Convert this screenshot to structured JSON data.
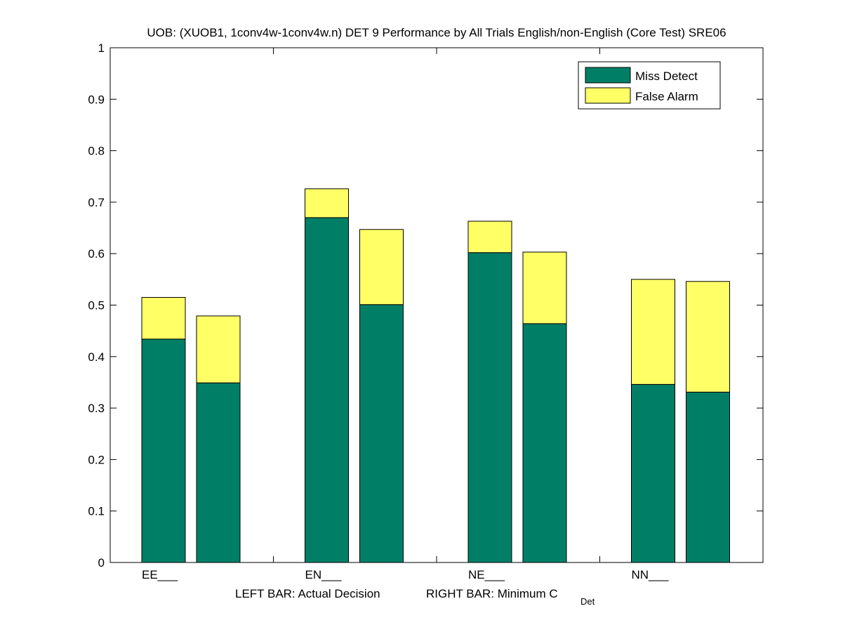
{
  "chart_data": {
    "type": "bar",
    "stacked": true,
    "title": "UOB: (XUOB1, 1conv4w-1conv4w.n) DET 9 Performance by All Trials English/non-English (Core Test) SRE06",
    "categories": [
      "EE___",
      "EN___",
      "NE___",
      "NN___"
    ],
    "bars_per_category": [
      "Actual Decision",
      "Minimum C_Det"
    ],
    "series": [
      {
        "name": "Miss Detect",
        "color": "#007f66",
        "values": [
          [
            0.434,
            0.349
          ],
          [
            0.67,
            0.501
          ],
          [
            0.602,
            0.464
          ],
          [
            0.346,
            0.331
          ]
        ]
      },
      {
        "name": "False Alarm",
        "color": "#ffff66",
        "values": [
          [
            0.081,
            0.13
          ],
          [
            0.056,
            0.146
          ],
          [
            0.061,
            0.139
          ],
          [
            0.204,
            0.215
          ]
        ]
      }
    ],
    "xlabel": {
      "left_prefix": "LEFT BAR: Actual Decision",
      "right_prefix": "RIGHT BAR: Minimum C",
      "right_subscript": "Det"
    },
    "ylim": [
      0,
      1
    ],
    "yticks": [
      "0",
      "0.1",
      "0.2",
      "0.3",
      "0.4",
      "0.5",
      "0.6",
      "0.7",
      "0.8",
      "0.9",
      "1"
    ],
    "legend_position": "top-right",
    "grid": false
  }
}
